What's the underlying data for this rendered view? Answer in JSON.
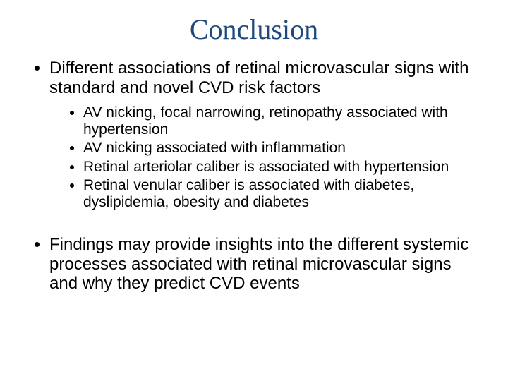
{
  "title": "Conclusion",
  "title_color": "#1f497d",
  "body_color": "#000000",
  "bullets": {
    "b1": "Different associations of retinal microvascular signs with standard and novel CVD risk factors",
    "sub1": "AV nicking, focal narrowing, retinopathy associated with hypertension",
    "sub2": "AV nicking associated with inflammation",
    "sub3": "Retinal arteriolar caliber is associated with hypertension",
    "sub4": "Retinal venular caliber is associated with diabetes, dyslipidemia, obesity and diabetes",
    "b2": "Findings may provide insights into the different systemic processes associated with retinal microvascular signs and why they predict CVD events"
  }
}
